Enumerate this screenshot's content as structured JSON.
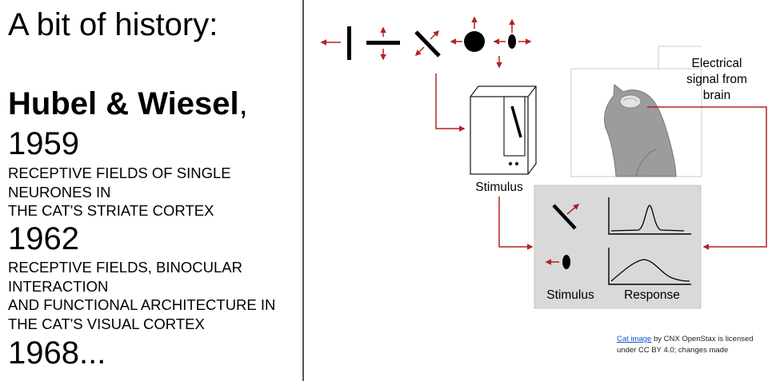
{
  "slide": {
    "title": "A bit of history:",
    "authors": {
      "names": "Hubel & Wiesel",
      "suffix": ","
    },
    "entries": [
      {
        "year": "1959",
        "paper_lines": [
          "RECEPTIVE FIELDS OF SINGLE",
          "NEURONES IN",
          "THE CAT'S STRIATE CORTEX"
        ]
      },
      {
        "year": "1962",
        "paper_lines": [
          "RECEPTIVE FIELDS, BINOCULAR",
          "INTERACTION",
          "AND FUNCTIONAL ARCHITECTURE IN",
          "THE CAT'S VISUAL CORTEX"
        ]
      },
      {
        "year": "1968...",
        "paper_lines": []
      }
    ]
  },
  "diagram": {
    "signal_label_lines": [
      "Electrical",
      "signal from",
      "brain"
    ],
    "monitor_label": "Stimulus",
    "panel_stimulus_label": "Stimulus",
    "panel_response_label": "Response",
    "colors": {
      "arrow": "#b22222",
      "panel": "#d9d9d9",
      "cat": "#999999"
    },
    "icons": [
      "vertical-bar-icon",
      "horizontal-bar-icon",
      "diagonal-bar-icon",
      "dot-icon",
      "oval-icon",
      "cat-icon",
      "monitor-icon",
      "response-curve-icon"
    ]
  },
  "credit": {
    "link_text": "Cat image",
    "line1_rest": " by CNX OpenStax is licensed",
    "line2": "under CC BY 4.0; changes made"
  }
}
